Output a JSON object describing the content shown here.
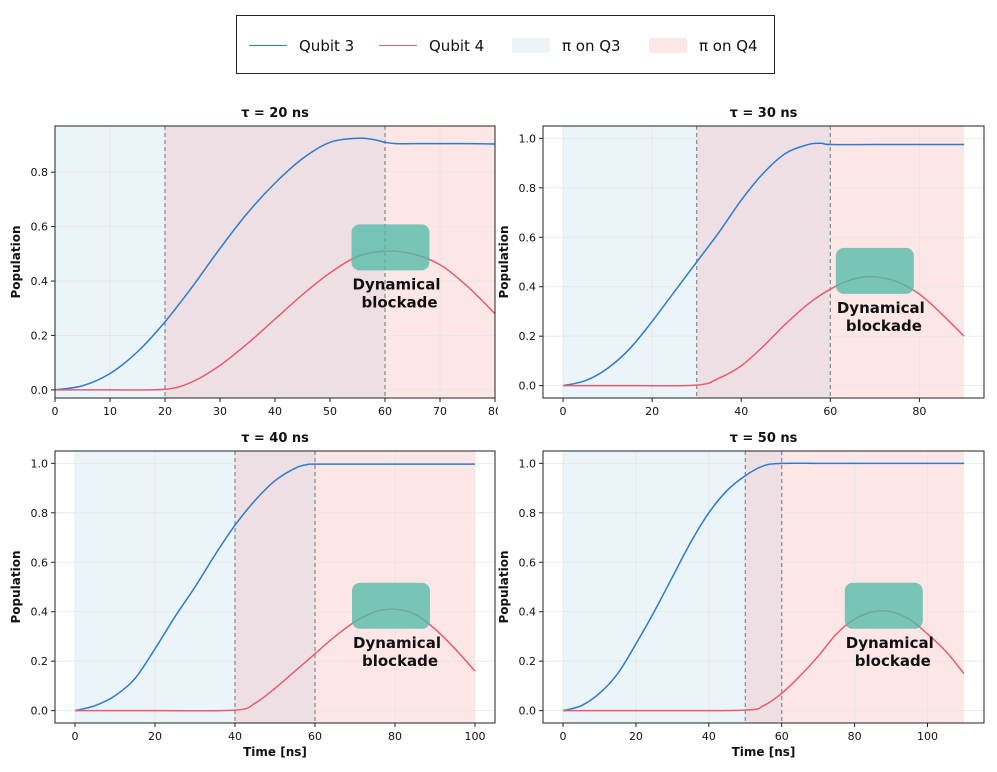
{
  "legend": {
    "items": [
      {
        "label": "Qubit 3",
        "kind": "line",
        "color": "#2c7bd0"
      },
      {
        "label": "Qubit 4",
        "kind": "line",
        "color": "#e85c6e"
      },
      {
        "label": "π on Q3",
        "kind": "patch",
        "color": "#eaf4f9"
      },
      {
        "label": "π on Q4",
        "kind": "patch",
        "color": "#fde6e6"
      }
    ]
  },
  "colors": {
    "q3": "#2c7bd0",
    "q4": "#e85c6e",
    "pi_q3": "#eaf4f9",
    "pi_q4": "#fde6e6",
    "overlap": "#eedfe4",
    "blockade_box": "#52bba6",
    "grid": "#e6e6e6",
    "vline": "#888888"
  },
  "chart_data": [
    {
      "type": "line",
      "title": "τ = 20 ns",
      "tau": 20,
      "pi_q4_start": 60,
      "xlabel": "",
      "ylabel": "Population",
      "xlim": [
        0,
        80
      ],
      "ylim": [
        -0.03,
        0.97
      ],
      "xticks": [
        0,
        10,
        20,
        30,
        40,
        50,
        60,
        70,
        80
      ],
      "xtick_labels": [
        "0",
        "10",
        "20",
        "30",
        "40",
        "50",
        "60",
        "70",
        "80"
      ],
      "yticks": [
        0,
        0.2,
        0.4,
        0.6,
        0.8
      ],
      "ytick_labels": [
        "0.0",
        "0.2",
        "0.4",
        "0.6",
        "0.8"
      ],
      "shading": [
        {
          "label": "π on Q3",
          "x": [
            0,
            20
          ]
        },
        {
          "label": "π on Q4",
          "x": [
            20,
            80
          ]
        }
      ],
      "vlines": [
        20,
        60
      ],
      "series": [
        {
          "name": "Qubit 3",
          "x": [
            0,
            5,
            10,
            15,
            20,
            25,
            30,
            35,
            40,
            45,
            50,
            55,
            58,
            60,
            62,
            65,
            70,
            75,
            80
          ],
          "y": [
            0,
            0.015,
            0.06,
            0.14,
            0.25,
            0.38,
            0.52,
            0.65,
            0.76,
            0.85,
            0.91,
            0.925,
            0.92,
            0.91,
            0.905,
            0.905,
            0.905,
            0.905,
            0.904
          ]
        },
        {
          "name": "Qubit 4",
          "x": [
            0,
            10,
            20,
            25,
            30,
            35,
            40,
            45,
            50,
            55,
            60,
            65,
            70,
            75,
            80
          ],
          "y": [
            0,
            0,
            0.002,
            0.03,
            0.09,
            0.17,
            0.26,
            0.35,
            0.43,
            0.49,
            0.51,
            0.5,
            0.46,
            0.38,
            0.28
          ]
        }
      ],
      "annotation": {
        "line1": "Dynamical",
        "line2": "blockade",
        "x": 61,
        "y": 0.52
      }
    },
    {
      "type": "line",
      "title": "τ = 30 ns",
      "tau": 30,
      "pi_q4_start": 60,
      "xlabel": "",
      "ylabel": "Population",
      "xlim": [
        -4.5,
        94.5
      ],
      "ylim": [
        -0.05,
        1.05
      ],
      "xticks": [
        0,
        20,
        40,
        60,
        80
      ],
      "xtick_labels": [
        "0",
        "20",
        "40",
        "60",
        "80"
      ],
      "yticks": [
        0,
        0.2,
        0.4,
        0.6,
        0.8,
        1.0
      ],
      "ytick_labels": [
        "0.0",
        "0.2",
        "0.4",
        "0.6",
        "0.8",
        "1.0"
      ],
      "shading": [
        {
          "label": "π on Q3",
          "x": [
            0,
            30
          ]
        },
        {
          "label": "π on Q4",
          "x": [
            30,
            90
          ]
        }
      ],
      "vlines": [
        30,
        60
      ],
      "series": [
        {
          "name": "Qubit 3",
          "x": [
            0,
            5,
            10,
            15,
            20,
            25,
            30,
            35,
            40,
            45,
            50,
            55,
            58,
            60,
            70,
            80,
            90
          ],
          "y": [
            0,
            0.02,
            0.07,
            0.15,
            0.26,
            0.38,
            0.5,
            0.62,
            0.75,
            0.86,
            0.94,
            0.975,
            0.98,
            0.975,
            0.975,
            0.975,
            0.975
          ]
        },
        {
          "name": "Qubit 4",
          "x": [
            0,
            15,
            30,
            35,
            40,
            45,
            50,
            55,
            60,
            65,
            70,
            75,
            80,
            85,
            90
          ],
          "y": [
            0,
            0,
            0.002,
            0.03,
            0.08,
            0.16,
            0.25,
            0.33,
            0.39,
            0.43,
            0.44,
            0.42,
            0.37,
            0.29,
            0.2
          ]
        }
      ],
      "annotation": {
        "line1": "Dynamical",
        "line2": "blockade",
        "x": 70,
        "y": 0.46
      }
    },
    {
      "type": "line",
      "title": "τ = 40 ns",
      "tau": 40,
      "pi_q4_start": 60,
      "xlabel": "Time [ns]",
      "ylabel": "Population",
      "xlim": [
        -5,
        105
      ],
      "ylim": [
        -0.05,
        1.05
      ],
      "xticks": [
        0,
        20,
        40,
        60,
        80,
        100
      ],
      "xtick_labels": [
        "0",
        "20",
        "40",
        "60",
        "80",
        "100"
      ],
      "yticks": [
        0,
        0.2,
        0.4,
        0.6,
        0.8,
        1.0
      ],
      "ytick_labels": [
        "0.0",
        "0.2",
        "0.4",
        "0.6",
        "0.8",
        "1.0"
      ],
      "shading": [
        {
          "label": "π on Q3",
          "x": [
            0,
            40
          ]
        },
        {
          "label": "π on Q4",
          "x": [
            40,
            100
          ]
        }
      ],
      "vlines": [
        40,
        60
      ],
      "series": [
        {
          "name": "Qubit 3",
          "x": [
            0,
            5,
            10,
            15,
            20,
            25,
            30,
            35,
            40,
            45,
            50,
            55,
            58,
            60,
            70,
            80,
            90,
            100
          ],
          "y": [
            0,
            0.02,
            0.06,
            0.13,
            0.25,
            0.38,
            0.5,
            0.63,
            0.75,
            0.85,
            0.93,
            0.98,
            0.995,
            0.997,
            0.997,
            0.997,
            0.997,
            0.997
          ]
        },
        {
          "name": "Qubit 4",
          "x": [
            0,
            20,
            40,
            45,
            50,
            55,
            60,
            65,
            70,
            75,
            80,
            85,
            90,
            95,
            100
          ],
          "y": [
            0,
            0,
            0.002,
            0.03,
            0.09,
            0.16,
            0.23,
            0.3,
            0.36,
            0.4,
            0.41,
            0.39,
            0.33,
            0.25,
            0.16
          ]
        }
      ],
      "annotation": {
        "line1": "Dynamical",
        "line2": "blockade",
        "x": 79,
        "y": 0.42
      }
    },
    {
      "type": "line",
      "title": "τ = 50 ns",
      "tau": 50,
      "pi_q4_start": 60,
      "xlabel": "Time [ns]",
      "ylabel": "Population",
      "xlim": [
        -5.5,
        115.5
      ],
      "ylim": [
        -0.05,
        1.05
      ],
      "xticks": [
        0,
        20,
        40,
        60,
        80,
        100
      ],
      "xtick_labels": [
        "0",
        "20",
        "40",
        "60",
        "80",
        "100"
      ],
      "yticks": [
        0,
        0.2,
        0.4,
        0.6,
        0.8,
        1.0
      ],
      "ytick_labels": [
        "0.0",
        "0.2",
        "0.4",
        "0.6",
        "0.8",
        "1.0"
      ],
      "shading": [
        {
          "label": "π on Q3",
          "x": [
            0,
            50
          ]
        },
        {
          "label": "π on Q4",
          "x": [
            50,
            110
          ]
        }
      ],
      "vlines": [
        50,
        60
      ],
      "series": [
        {
          "name": "Qubit 3",
          "x": [
            0,
            5,
            10,
            15,
            20,
            25,
            30,
            35,
            40,
            45,
            50,
            55,
            60,
            70,
            80,
            90,
            100,
            110
          ],
          "y": [
            0,
            0.02,
            0.07,
            0.15,
            0.27,
            0.4,
            0.54,
            0.68,
            0.8,
            0.89,
            0.95,
            0.99,
            1.0,
            1.0,
            1.0,
            1.0,
            1.0,
            1.0
          ]
        },
        {
          "name": "Qubit 4",
          "x": [
            0,
            25,
            50,
            55,
            60,
            65,
            70,
            75,
            80,
            85,
            90,
            95,
            100,
            105,
            110
          ],
          "y": [
            0,
            0,
            0.002,
            0.02,
            0.07,
            0.14,
            0.22,
            0.31,
            0.37,
            0.4,
            0.4,
            0.37,
            0.31,
            0.24,
            0.15
          ]
        }
      ],
      "annotation": {
        "line1": "Dynamical",
        "line2": "blockade",
        "x": 88,
        "y": 0.42
      }
    }
  ]
}
